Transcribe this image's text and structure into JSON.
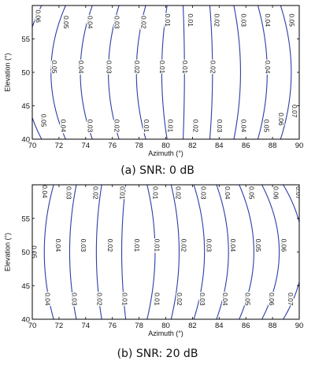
{
  "chart_data": [
    {
      "type": "contour",
      "caption": "(a) SNR: 0 dB",
      "xlabel": "Azimuth (°)",
      "ylabel": "Elevation (°)",
      "xlim": [
        70,
        90
      ],
      "ylim": [
        40,
        60
      ],
      "xticks": [
        "70",
        "72",
        "74",
        "76",
        "78",
        "80",
        "82",
        "84",
        "86",
        "88",
        "90"
      ],
      "yticks": [
        "40",
        "45",
        "50",
        "55"
      ],
      "line_color": "#2a3ea8",
      "contours": [
        {
          "label": "0.06",
          "x_bottom": 70.7,
          "x_mid": 69.4
        },
        {
          "label": "0.05",
          "x_bottom": 72.5,
          "x_mid": 71.4
        },
        {
          "label": "0.04",
          "x_bottom": 74.5,
          "x_mid": 73.6
        },
        {
          "label": "0.03",
          "x_bottom": 76.5,
          "x_mid": 75.7
        },
        {
          "label": "0.02",
          "x_bottom": 78.5,
          "x_mid": 77.8
        },
        {
          "label": "0.01",
          "x_bottom": 80.1,
          "x_mid": 79.7
        },
        {
          "label": "0.01",
          "x_bottom": 81.3,
          "x_mid": 81.4
        },
        {
          "label": "0.02",
          "x_bottom": 83.3,
          "x_mid": 83.5
        },
        {
          "label": "0.03",
          "x_bottom": 85.1,
          "x_mid": 85.6
        },
        {
          "label": "0.04",
          "x_bottom": 86.9,
          "x_mid": 87.6
        },
        {
          "label": "0.05",
          "x_bottom": 88.6,
          "x_mid": 89.4
        },
        {
          "label": "0.06",
          "x_bottom": 90.2,
          "x_mid": 91.0
        },
        {
          "label": "0.07",
          "x_bottom": 92.0,
          "x_mid": 92.8
        }
      ],
      "label_positions": [
        {
          "text": "0.06",
          "x": 70.4,
          "y": 58.4
        },
        {
          "text": "0.06",
          "x": 69.6,
          "y": 51.0
        },
        {
          "text": "0.05",
          "x": 70.8,
          "y": 42.8
        },
        {
          "text": "0.05",
          "x": 72.5,
          "y": 57.5
        },
        {
          "text": "0.05",
          "x": 71.6,
          "y": 50.8
        },
        {
          "text": "0.04",
          "x": 72.3,
          "y": 42.0
        },
        {
          "text": "0.04",
          "x": 74.3,
          "y": 57.5
        },
        {
          "text": "0.04",
          "x": 73.6,
          "y": 50.8
        },
        {
          "text": "0.03",
          "x": 74.3,
          "y": 42.0
        },
        {
          "text": "0.03",
          "x": 76.3,
          "y": 57.5
        },
        {
          "text": "0.03",
          "x": 75.7,
          "y": 50.8
        },
        {
          "text": "0.02",
          "x": 76.3,
          "y": 42.0
        },
        {
          "text": "0.02",
          "x": 78.3,
          "y": 57.5
        },
        {
          "text": "0.02",
          "x": 77.8,
          "y": 50.8
        },
        {
          "text": "0.01",
          "x": 78.5,
          "y": 42.0
        },
        {
          "text": "0.01",
          "x": 80.1,
          "y": 57.8
        },
        {
          "text": "0.01",
          "x": 79.7,
          "y": 50.8
        },
        {
          "text": "0.01",
          "x": 80.3,
          "y": 42.0
        },
        {
          "text": "0.01",
          "x": 81.8,
          "y": 57.8
        },
        {
          "text": "0.01",
          "x": 81.4,
          "y": 50.8
        },
        {
          "text": "0.02",
          "x": 82.2,
          "y": 42.0
        },
        {
          "text": "0.02",
          "x": 83.8,
          "y": 57.8
        },
        {
          "text": "0.02",
          "x": 83.5,
          "y": 50.8
        },
        {
          "text": "0.03",
          "x": 84.0,
          "y": 42.0
        },
        {
          "text": "0.03",
          "x": 85.8,
          "y": 57.8
        },
        {
          "text": "0.04",
          "x": 87.6,
          "y": 50.8
        },
        {
          "text": "0.04",
          "x": 85.8,
          "y": 42.0
        },
        {
          "text": "0.04",
          "x": 87.6,
          "y": 57.8
        },
        {
          "text": "0.05",
          "x": 87.5,
          "y": 42.0
        },
        {
          "text": "0.05",
          "x": 89.4,
          "y": 57.8
        },
        {
          "text": "0.06",
          "x": 88.6,
          "y": 43.0
        },
        {
          "text": "0.06",
          "x": 90.6,
          "y": 57.8
        },
        {
          "text": "0.07",
          "x": 89.6,
          "y": 44.2
        }
      ]
    },
    {
      "type": "contour",
      "caption": "(b) SNR: 20 dB",
      "xlabel": "Azimuth (°)",
      "ylabel": "Elevation (°)",
      "xlim": [
        70,
        90
      ],
      "ylim": [
        40,
        60
      ],
      "xticks": [
        "70",
        "72",
        "74",
        "76",
        "78",
        "80",
        "82",
        "84",
        "86",
        "88",
        "90"
      ],
      "yticks": [
        "40",
        "45",
        "50",
        "55"
      ],
      "line_color": "#2a3ea8",
      "contours": [
        {
          "label": "0.05",
          "x_bottom": 70.0,
          "x_mid": 69.2
        },
        {
          "label": "0.04",
          "x_bottom": 71.6,
          "x_mid": 70.9
        },
        {
          "label": "0.03",
          "x_bottom": 73.3,
          "x_mid": 72.8
        },
        {
          "label": "0.02",
          "x_bottom": 75.2,
          "x_mid": 74.8
        },
        {
          "label": "0.01",
          "x_bottom": 77.0,
          "x_mid": 76.7
        },
        {
          "label": "0.01",
          "x_bottom": 78.6,
          "x_mid": 79.2
        },
        {
          "label": "0.02",
          "x_bottom": 80.4,
          "x_mid": 81.0
        },
        {
          "label": "0.03",
          "x_bottom": 82.1,
          "x_mid": 82.9
        },
        {
          "label": "0.04",
          "x_bottom": 83.8,
          "x_mid": 84.7
        },
        {
          "label": "0.05",
          "x_bottom": 85.5,
          "x_mid": 86.6
        },
        {
          "label": "0.06",
          "x_bottom": 87.2,
          "x_mid": 88.5
        },
        {
          "label": "0.07",
          "x_bottom": 88.8,
          "x_mid": 90.3
        },
        {
          "label": "0.08",
          "x_bottom": 90.4,
          "x_mid": 92.1
        }
      ],
      "label_positions": [
        {
          "text": "0.05",
          "x": 69.6,
          "y": 58.5
        },
        {
          "text": "0.05",
          "x": 70.1,
          "y": 50.0
        },
        {
          "text": "0.04",
          "x": 70.9,
          "y": 59.0
        },
        {
          "text": "0.04",
          "x": 71.9,
          "y": 51.0
        },
        {
          "text": "0.04",
          "x": 71.1,
          "y": 43.0
        },
        {
          "text": "0.03",
          "x": 72.7,
          "y": 58.8
        },
        {
          "text": "0.03",
          "x": 73.8,
          "y": 51.0
        },
        {
          "text": "0.03",
          "x": 73.1,
          "y": 43.0
        },
        {
          "text": "0.02",
          "x": 74.7,
          "y": 58.8
        },
        {
          "text": "0.02",
          "x": 75.8,
          "y": 51.0
        },
        {
          "text": "0.02",
          "x": 75.0,
          "y": 43.0
        },
        {
          "text": "0.01",
          "x": 76.7,
          "y": 58.8
        },
        {
          "text": "0.01",
          "x": 77.8,
          "y": 51.0
        },
        {
          "text": "0.01",
          "x": 76.9,
          "y": 43.0
        },
        {
          "text": "0.01",
          "x": 79.2,
          "y": 58.8
        },
        {
          "text": "0.01",
          "x": 79.3,
          "y": 51.0
        },
        {
          "text": "0.01",
          "x": 79.3,
          "y": 43.0
        },
        {
          "text": "0.02",
          "x": 80.9,
          "y": 58.8
        },
        {
          "text": "0.02",
          "x": 81.3,
          "y": 51.0
        },
        {
          "text": "0.02",
          "x": 81.0,
          "y": 43.0
        },
        {
          "text": "0.03",
          "x": 82.8,
          "y": 58.8
        },
        {
          "text": "0.03",
          "x": 83.2,
          "y": 51.0
        },
        {
          "text": "0.03",
          "x": 82.7,
          "y": 43.0
        },
        {
          "text": "0.04",
          "x": 84.6,
          "y": 58.8
        },
        {
          "text": "0.04",
          "x": 85.0,
          "y": 51.0
        },
        {
          "text": "0.04",
          "x": 84.4,
          "y": 43.0
        },
        {
          "text": "0.05",
          "x": 86.4,
          "y": 58.8
        },
        {
          "text": "0.05",
          "x": 86.9,
          "y": 51.0
        },
        {
          "text": "0.05",
          "x": 86.1,
          "y": 43.0
        },
        {
          "text": "0.06",
          "x": 88.2,
          "y": 58.8
        },
        {
          "text": "0.06",
          "x": 88.8,
          "y": 51.0
        },
        {
          "text": "0.06",
          "x": 87.9,
          "y": 43.0
        },
        {
          "text": "0.07",
          "x": 89.9,
          "y": 58.8
        },
        {
          "text": "0.07",
          "x": 90.4,
          "y": 51.0
        },
        {
          "text": "0.07",
          "x": 89.3,
          "y": 43.0
        },
        {
          "text": "0.08",
          "x": 90.2,
          "y": 40.8
        }
      ]
    }
  ]
}
